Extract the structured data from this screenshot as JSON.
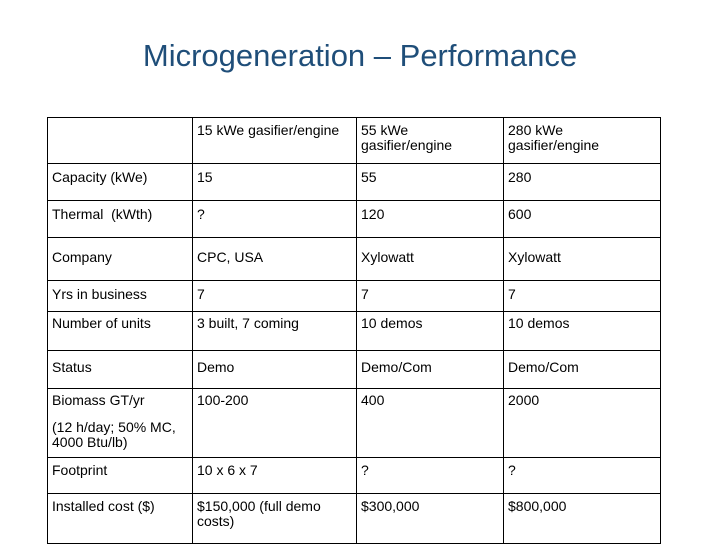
{
  "title": "Microgeneration – Performance",
  "header": [
    "",
    "15 kWe gasifier/engine",
    "55 kWe gasifier/engine",
    "280 kWe gasifier/engine"
  ],
  "rows": [
    [
      "Capacity (kWe)",
      "15",
      "55",
      "280"
    ],
    [
      "Thermal  (kWth)",
      "?",
      "120",
      "600"
    ],
    [
      "Company",
      "CPC, USA",
      "Xylowatt",
      "Xylowatt"
    ],
    [
      "Yrs in business",
      "7",
      "7",
      "7"
    ],
    [
      "Number of units",
      "3 built, 7 coming",
      "10 demos",
      "10 demos"
    ],
    [
      "Status",
      "Demo",
      "Demo/Com",
      "Demo/Com"
    ],
    [
      "Biomass GT/yr",
      "100-200",
      "400",
      "2000"
    ],
    [
      "Footprint",
      "10 x 6 x 7",
      "?",
      "?"
    ],
    [
      "Installed cost ($)",
      "$150,000 (full demo costs)",
      "$300,000",
      "$800,000"
    ]
  ],
  "biomass_note": "(12 h/day; 50% MC, 4000 Btu/lb)"
}
